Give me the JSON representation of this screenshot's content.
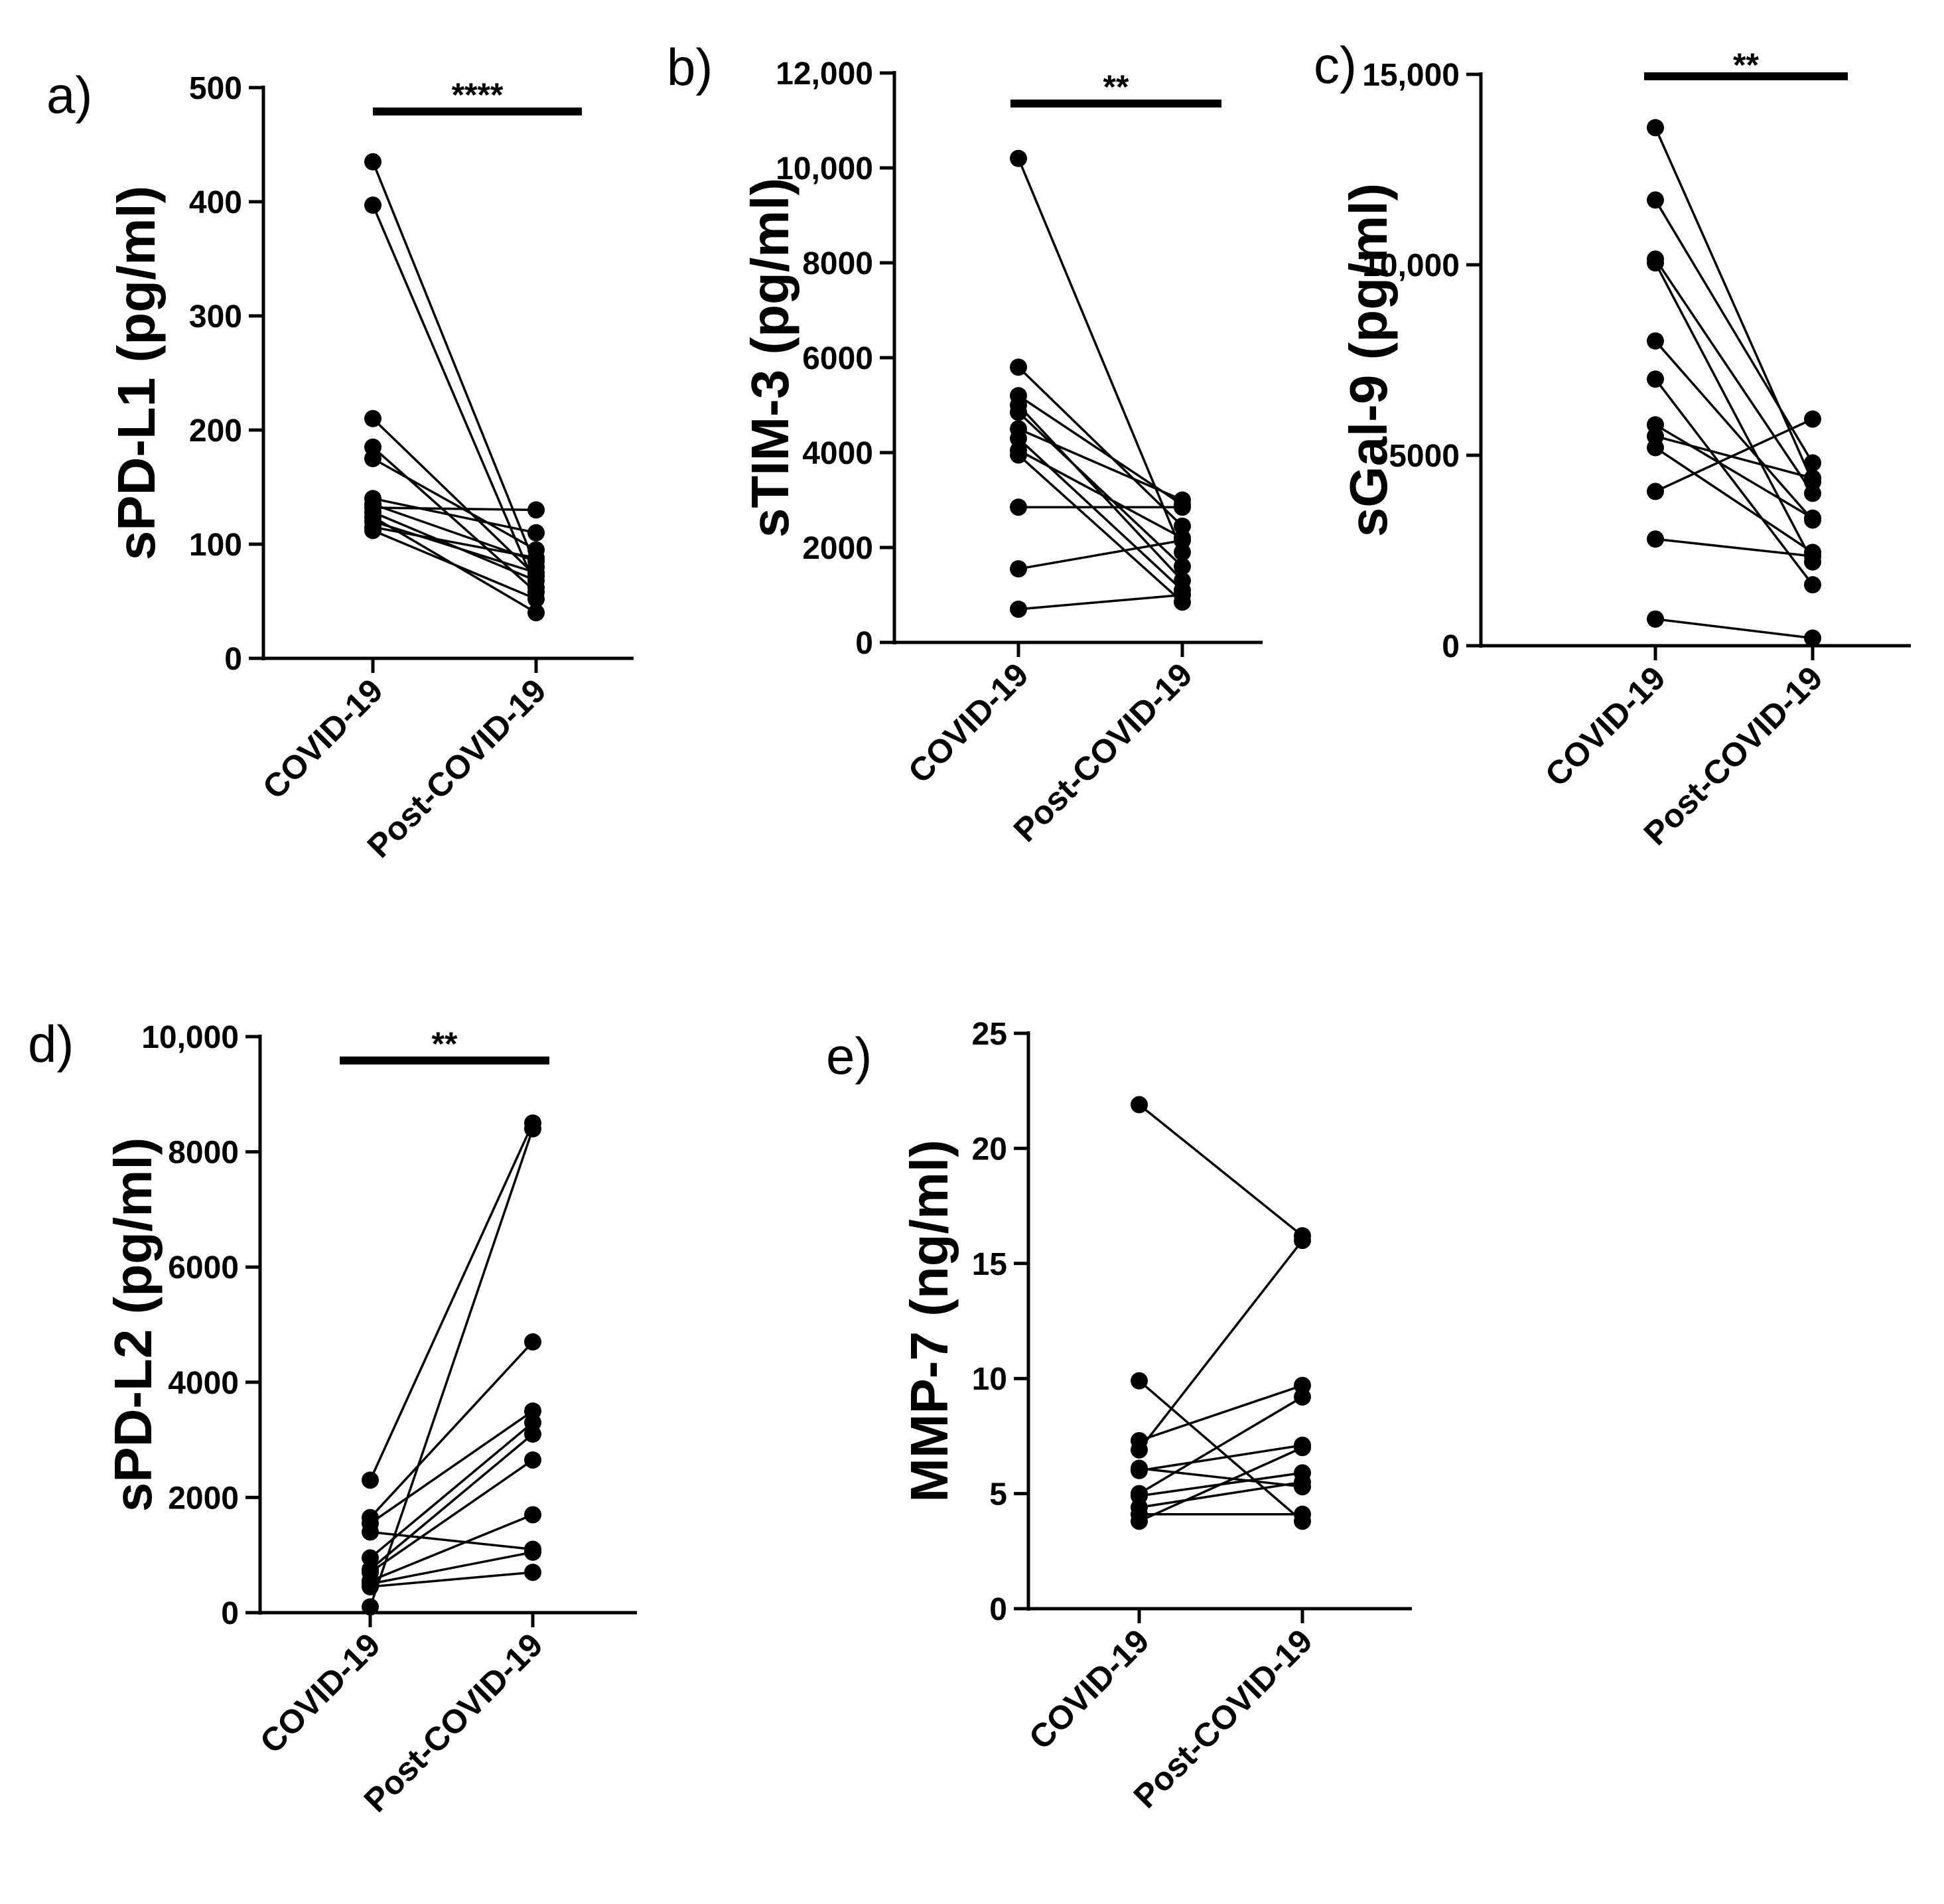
{
  "chart_data": [
    {
      "panel_label": "a)",
      "type": "line",
      "ylabel": "sPD-L1 (pg/ml)",
      "ylim": [
        0,
        500
      ],
      "yticks": [
        0,
        100,
        200,
        300,
        400,
        500
      ],
      "ytick_labels": [
        "0",
        "100",
        "200",
        "300",
        "400",
        "500"
      ],
      "categories": [
        "COVID-19",
        "Post-COVID-19"
      ],
      "significance": "****",
      "pairs": [
        [
          435,
          80
        ],
        [
          397,
          62
        ],
        [
          210,
          72
        ],
        [
          185,
          58
        ],
        [
          175,
          95
        ],
        [
          140,
          110
        ],
        [
          135,
          85
        ],
        [
          132,
          130
        ],
        [
          128,
          68
        ],
        [
          124,
          40
        ],
        [
          120,
          75
        ],
        [
          115,
          88
        ],
        [
          112,
          52
        ]
      ]
    },
    {
      "panel_label": "b)",
      "type": "line",
      "ylabel": "sTIM-3 (pg/ml)",
      "ylim": [
        0,
        12000
      ],
      "yticks": [
        0,
        2000,
        4000,
        6000,
        8000,
        10000,
        12000
      ],
      "ytick_labels": [
        "0",
        "2000",
        "4000",
        "6000",
        "8000",
        "10,000",
        "12,000"
      ],
      "categories": [
        "COVID-19",
        "Post-COVID-19"
      ],
      "significance": "**",
      "pairs": [
        [
          10200,
          1900
        ],
        [
          5800,
          2450
        ],
        [
          5200,
          2900
        ],
        [
          5000,
          1300
        ],
        [
          4850,
          1600
        ],
        [
          4500,
          3000
        ],
        [
          4300,
          1100
        ],
        [
          4050,
          2200
        ],
        [
          3950,
          850
        ],
        [
          2850,
          2850
        ],
        [
          1550,
          2150
        ],
        [
          700,
          1000
        ]
      ]
    },
    {
      "panel_label": "c)",
      "type": "line",
      "ylabel": "sGal-9 (pg/ml)",
      "ylim": [
        0,
        15000
      ],
      "yticks": [
        0,
        5000,
        10000,
        15000
      ],
      "ytick_labels": [
        "0",
        "5000",
        "10,000",
        "15,000"
      ],
      "categories": [
        "COVID-19",
        "Post-COVID-19"
      ],
      "significance": "**",
      "pairs": [
        [
          13600,
          4300
        ],
        [
          11700,
          4800
        ],
        [
          10150,
          4000
        ],
        [
          10050,
          2200
        ],
        [
          8000,
          3300
        ],
        [
          7000,
          1600
        ],
        [
          5800,
          3350
        ],
        [
          5500,
          4400
        ],
        [
          5200,
          2450
        ],
        [
          4050,
          5950
        ],
        [
          2800,
          2350
        ],
        [
          700,
          200
        ]
      ]
    },
    {
      "panel_label": "d)",
      "type": "line",
      "ylabel": "sPD-L2 (pg/ml)",
      "ylim": [
        0,
        10000
      ],
      "yticks": [
        0,
        2000,
        4000,
        6000,
        8000,
        10000
      ],
      "ytick_labels": [
        "0",
        "2000",
        "4000",
        "6000",
        "8000",
        "10,000"
      ],
      "categories": [
        "COVID-19",
        "Post-COVID-19"
      ],
      "significance": "**",
      "pairs": [
        [
          2300,
          8500
        ],
        [
          1650,
          4700
        ],
        [
          1550,
          3500
        ],
        [
          1400,
          1100
        ],
        [
          950,
          3300
        ],
        [
          750,
          3100
        ],
        [
          700,
          2650
        ],
        [
          550,
          1700
        ],
        [
          500,
          1050
        ],
        [
          450,
          700
        ],
        [
          100,
          8400
        ]
      ]
    },
    {
      "panel_label": "e)",
      "type": "line",
      "ylabel": "MMP-7 (ng/ml)",
      "ylim": [
        0,
        25
      ],
      "yticks": [
        0,
        5,
        10,
        15,
        20,
        25
      ],
      "ytick_labels": [
        "0",
        "5",
        "10",
        "15",
        "20",
        "25"
      ],
      "categories": [
        "COVID-19",
        "Post-COVID-19"
      ],
      "significance": "",
      "pairs": [
        [
          21.9,
          16.2
        ],
        [
          9.9,
          3.8
        ],
        [
          7.3,
          9.7
        ],
        [
          6.9,
          16.0
        ],
        [
          6.1,
          5.3
        ],
        [
          6.0,
          7.1
        ],
        [
          5.0,
          9.2
        ],
        [
          4.9,
          5.9
        ],
        [
          4.4,
          5.5
        ],
        [
          4.1,
          4.1
        ],
        [
          3.8,
          7.0
        ]
      ]
    }
  ]
}
